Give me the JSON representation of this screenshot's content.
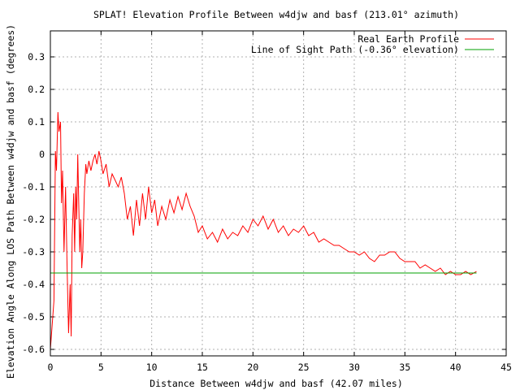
{
  "chart_data": {
    "type": "line",
    "title": "SPLAT! Elevation Profile Between w4djw and basf (213.01° azimuth)",
    "xlabel": "Distance Between w4djw and basf (42.07 miles)",
    "ylabel": "Elevation Angle Along LOS Path Between w4djw and basf (degrees)",
    "xlim": [
      0,
      45
    ],
    "ylim": [
      -0.62,
      0.38
    ],
    "xticks": [
      "0",
      "5",
      "10",
      "15",
      "20",
      "25",
      "30",
      "35",
      "40",
      "45"
    ],
    "yticks": [
      "0.3",
      "0.2",
      "0.1",
      "0",
      "-0.1",
      "-0.2",
      "-0.3",
      "-0.4",
      "-0.5",
      "-0.6"
    ],
    "grid": true,
    "legend_position": "top-right",
    "series": [
      {
        "name": "Real Earth Profile",
        "color": "#ff0000",
        "x": [
          0.0,
          0.35,
          0.5,
          0.6,
          0.75,
          0.85,
          1.0,
          1.1,
          1.2,
          1.35,
          1.5,
          1.65,
          1.8,
          1.95,
          2.05,
          2.15,
          2.3,
          2.4,
          2.5,
          2.6,
          2.7,
          2.8,
          2.9,
          3.0,
          3.1,
          3.2,
          3.35,
          3.5,
          3.6,
          3.7,
          3.8,
          4.0,
          4.2,
          4.4,
          4.6,
          4.8,
          5.0,
          5.2,
          5.5,
          5.8,
          6.1,
          6.4,
          6.7,
          7.0,
          7.3,
          7.6,
          7.9,
          8.2,
          8.5,
          8.8,
          9.1,
          9.4,
          9.7,
          10.0,
          10.3,
          10.6,
          11.0,
          11.4,
          11.8,
          12.2,
          12.6,
          13.0,
          13.4,
          13.8,
          14.2,
          14.6,
          15.0,
          15.5,
          16.0,
          16.5,
          17.0,
          17.5,
          18.0,
          18.5,
          19.0,
          19.5,
          20.0,
          20.5,
          21.0,
          21.5,
          22.0,
          22.5,
          23.0,
          23.5,
          24.0,
          24.5,
          25.0,
          25.5,
          26.0,
          26.5,
          27.0,
          27.5,
          28.0,
          28.5,
          29.0,
          29.5,
          30.0,
          30.5,
          31.0,
          31.5,
          32.0,
          32.5,
          33.0,
          33.5,
          34.0,
          34.5,
          35.0,
          35.5,
          36.0,
          36.5,
          37.0,
          37.5,
          38.0,
          38.5,
          39.0,
          39.5,
          40.0,
          40.5,
          41.0,
          41.5,
          42.07
        ],
        "values": [
          -0.6,
          -0.45,
          0.01,
          -0.05,
          0.13,
          0.07,
          0.1,
          -0.15,
          -0.05,
          -0.3,
          -0.1,
          -0.35,
          -0.55,
          -0.4,
          -0.56,
          -0.25,
          -0.12,
          -0.3,
          -0.1,
          -0.2,
          0.0,
          -0.15,
          -0.3,
          -0.2,
          -0.35,
          -0.3,
          -0.12,
          -0.03,
          -0.06,
          -0.04,
          -0.02,
          -0.05,
          -0.02,
          0.0,
          -0.03,
          0.01,
          -0.02,
          -0.06,
          -0.03,
          -0.1,
          -0.06,
          -0.08,
          -0.1,
          -0.07,
          -0.12,
          -0.2,
          -0.16,
          -0.25,
          -0.14,
          -0.22,
          -0.12,
          -0.2,
          -0.1,
          -0.18,
          -0.14,
          -0.22,
          -0.16,
          -0.2,
          -0.14,
          -0.18,
          -0.13,
          -0.17,
          -0.12,
          -0.16,
          -0.19,
          -0.24,
          -0.22,
          -0.26,
          -0.24,
          -0.27,
          -0.23,
          -0.26,
          -0.24,
          -0.25,
          -0.22,
          -0.24,
          -0.2,
          -0.22,
          -0.19,
          -0.23,
          -0.2,
          -0.24,
          -0.22,
          -0.25,
          -0.23,
          -0.24,
          -0.22,
          -0.25,
          -0.24,
          -0.27,
          -0.26,
          -0.27,
          -0.28,
          -0.28,
          -0.29,
          -0.3,
          -0.3,
          -0.31,
          -0.3,
          -0.32,
          -0.33,
          -0.31,
          -0.31,
          -0.3,
          -0.3,
          -0.32,
          -0.33,
          -0.33,
          -0.33,
          -0.35,
          -0.34,
          -0.35,
          -0.36,
          -0.35,
          -0.37,
          -0.36,
          -0.37,
          -0.37,
          -0.36,
          -0.37,
          -0.36
        ]
      },
      {
        "name": "Line of Sight Path (-0.36° elevation)",
        "color": "#00a000",
        "x": [
          0,
          42.07
        ],
        "values": [
          -0.365,
          -0.365
        ]
      }
    ]
  }
}
